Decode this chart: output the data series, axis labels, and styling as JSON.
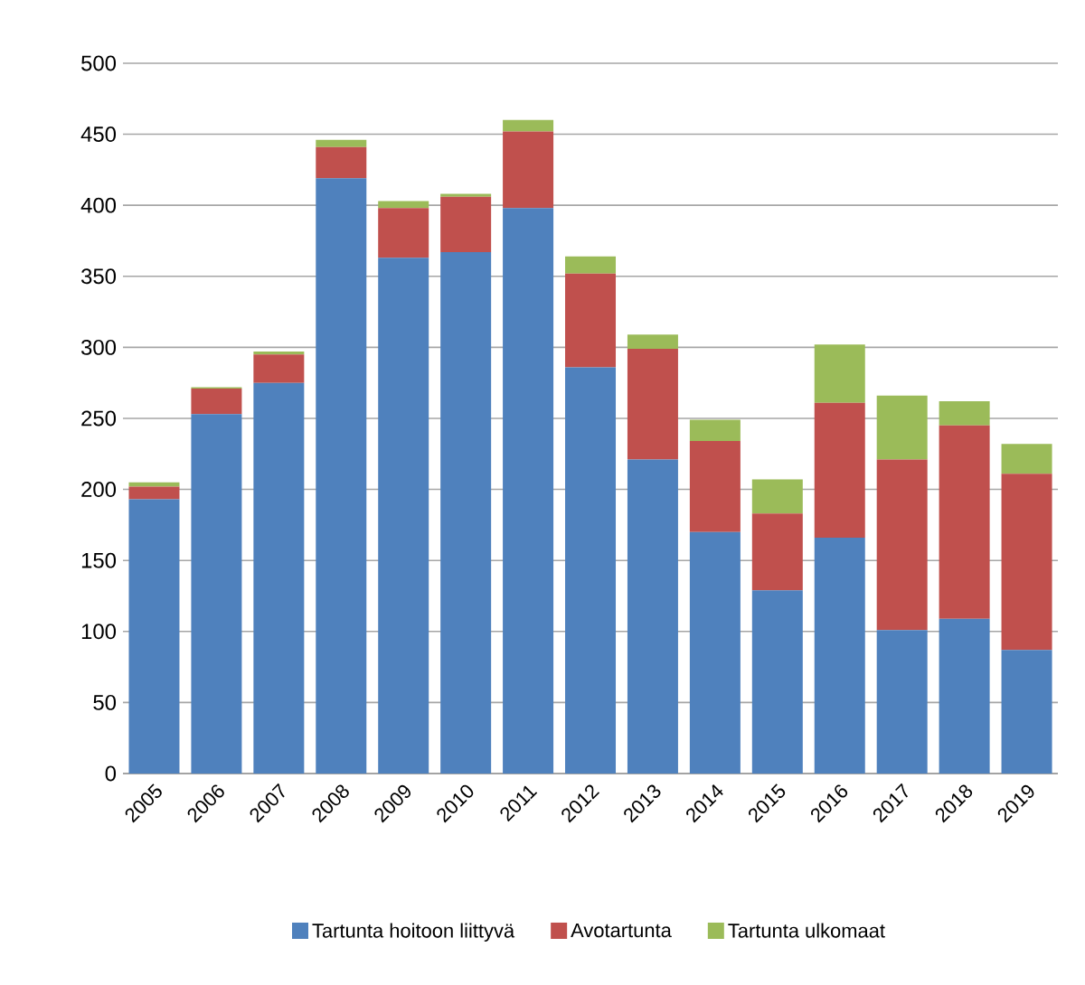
{
  "chart_data": {
    "type": "bar",
    "stacked": true,
    "categories": [
      "2005",
      "2006",
      "2007",
      "2008",
      "2009",
      "2010",
      "2011",
      "2012",
      "2013",
      "2014",
      "2015",
      "2016",
      "2017",
      "2018",
      "2019"
    ],
    "series": [
      {
        "name": "Tartunta hoitoon liittyvä",
        "color": "#4f81bd",
        "values": [
          193,
          253,
          275,
          419,
          363,
          367,
          398,
          286,
          221,
          170,
          129,
          166,
          101,
          109,
          87
        ]
      },
      {
        "name": "Avotartunta",
        "color": "#c0504d",
        "values": [
          9,
          18,
          20,
          22,
          35,
          39,
          54,
          66,
          78,
          64,
          54,
          95,
          120,
          136,
          124
        ]
      },
      {
        "name": "Tartunta ulkomaat",
        "color": "#9bbb59",
        "values": [
          3,
          1,
          2,
          5,
          5,
          2,
          8,
          12,
          10,
          15,
          24,
          41,
          45,
          17,
          21
        ]
      }
    ],
    "ylim": [
      0,
      500
    ],
    "yticks": [
      0,
      50,
      100,
      150,
      200,
      250,
      300,
      350,
      400,
      450,
      500
    ],
    "grid": "y",
    "legend": "bottom"
  }
}
